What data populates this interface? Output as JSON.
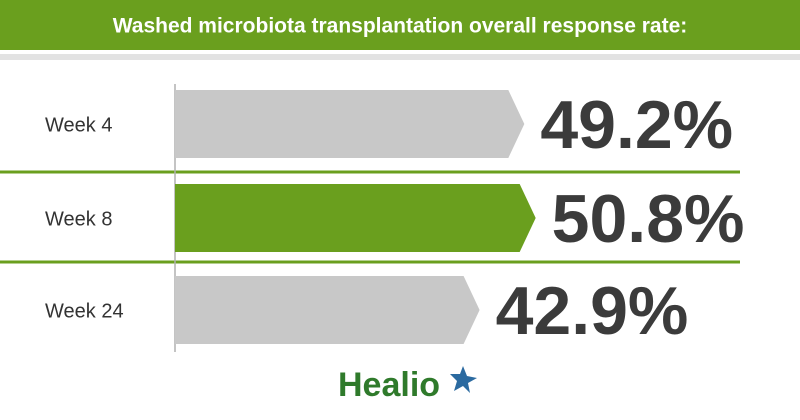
{
  "chart_data": {
    "type": "arrow-bar",
    "title": "Washed microbiota transplantation overall response rate:",
    "categories": [
      "Week 4",
      "Week 8",
      "Week 24"
    ],
    "values": [
      49.2,
      50.8,
      42.9
    ],
    "value_labels": [
      "49.2%",
      "50.8%",
      "42.9%"
    ],
    "colors": [
      "#c8c8c8",
      "#6a9f1e",
      "#c8c8c8"
    ]
  },
  "logo": "Healio"
}
